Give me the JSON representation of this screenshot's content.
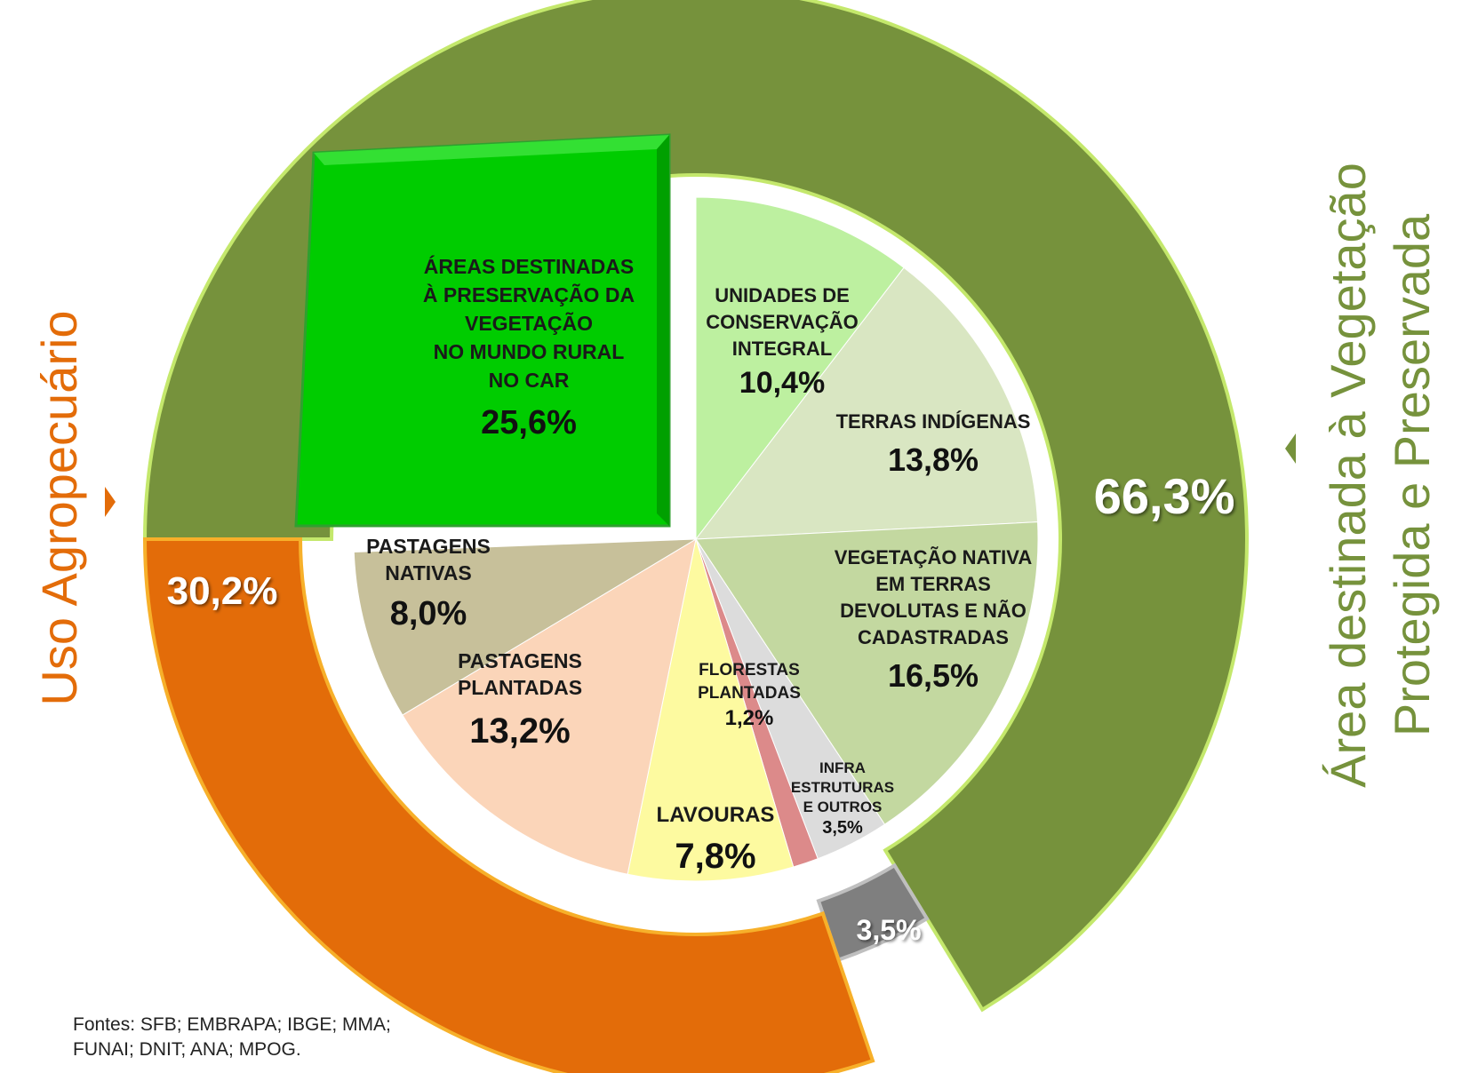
{
  "chart_data": {
    "type": "pie",
    "inner": {
      "slices": [
        {
          "key": "ucs",
          "lines": [
            "UNIDADES  DE",
            "CONSERVAÇÃO",
            "INTEGRAL"
          ],
          "value_label": "10,4%",
          "value": 10.4,
          "color": "#bdf0a0"
        },
        {
          "key": "ti",
          "lines": [
            "TERRAS INDÍGENAS"
          ],
          "value_label": "13,8%",
          "value": 13.8,
          "color": "#d9e6c2"
        },
        {
          "key": "vegnat",
          "lines": [
            "VEGETAÇÃO NATIVA",
            "EM TERRAS",
            "DEVOLUTAS E NÃO",
            "CADASTRADAS"
          ],
          "value_label": "16,5%",
          "value": 16.5,
          "color": "#c3d8a0"
        },
        {
          "key": "infra",
          "lines": [
            "INFRA",
            "ESTRUTURAS",
            "E OUTROS"
          ],
          "value_label": "3,5%",
          "value": 3.5,
          "color": "#dcdcdc"
        },
        {
          "key": "florestas",
          "lines": [
            "FLORESTAS",
            "PLANTADAS"
          ],
          "value_label": "1,2%",
          "value": 1.2,
          "color": "#dc8a8a"
        },
        {
          "key": "lavouras",
          "lines": [
            "LAVOURAS"
          ],
          "value_label": "7,8%",
          "value": 7.8,
          "color": "#fdfaa0"
        },
        {
          "key": "pastplant",
          "lines": [
            "PASTAGENS",
            "PLANTADAS"
          ],
          "value_label": "13,2%",
          "value": 13.2,
          "color": "#fbd5b9"
        },
        {
          "key": "pastnat",
          "lines": [
            "PASTAGENS",
            "NATIVAS"
          ],
          "value_label": "8,0%",
          "value": 8.0,
          "color": "#c7c09a"
        },
        {
          "key": "car",
          "lines": [
            "ÁREAS DESTINADAS",
            "À PRESERVAÇÃO DA",
            "VEGETAÇÃO",
            "NO MUNDO RURAL",
            "NO CAR"
          ],
          "value_label": "25,6%",
          "value": 25.6,
          "color": "#00cc00"
        }
      ]
    },
    "outer": {
      "segments": [
        {
          "key": "preservada",
          "value_label": "66,3%",
          "value": 66.3,
          "color": "#76923c"
        },
        {
          "key": "outros",
          "value_label": "3,5%",
          "value": 3.5,
          "color": "#7f7f7f"
        },
        {
          "key": "agro",
          "value_label": "30,2%",
          "value": 30.2,
          "color": "#e36c09"
        }
      ]
    }
  },
  "side_labels": {
    "left": "Uso Agropecuário",
    "right_line1": "Área destinada à Vegetação",
    "right_line2": "Protegida e Preservada"
  },
  "colors": {
    "left_label": "#e36c09",
    "right_label": "#76923c"
  },
  "sources": {
    "line1": "Fontes: SFB; EMBRAPA; IBGE; MMA;",
    "line2": "FUNAI; DNIT; ANA; MPOG."
  }
}
